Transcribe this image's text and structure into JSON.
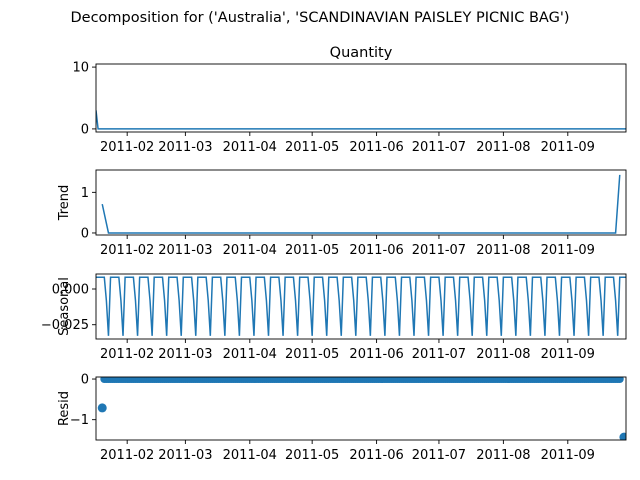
{
  "figure": {
    "suptitle": "Decomposition for ('Australia', 'SCANDINAVIAN PAISLEY PICNIC BAG')"
  },
  "colors": {
    "series": "#1f77b4",
    "axes": "#000000",
    "background": "#ffffff"
  },
  "chart_data": [
    {
      "type": "line",
      "panel": "observed",
      "title": "Quantity",
      "ylabel": "",
      "x_range": [
        "2011-01-17",
        "2011-09-29"
      ],
      "ylim": [
        -0.5,
        10.5
      ],
      "yticks": [
        {
          "v": 0,
          "label": "0"
        },
        {
          "v": 10,
          "label": "10"
        }
      ],
      "xticks": [
        "2011-02",
        "2011-03",
        "2011-04",
        "2011-05",
        "2011-06",
        "2011-07",
        "2011-08",
        "2011-09"
      ],
      "grid": false,
      "start": "2011-01-17",
      "values": [
        3,
        0,
        0,
        0,
        0,
        0,
        0,
        0,
        0,
        0,
        0,
        0,
        0,
        0,
        0,
        0,
        0,
        0,
        0,
        0,
        0,
        0,
        0,
        0,
        0,
        0,
        0,
        0,
        0,
        0,
        0,
        0,
        0,
        0,
        0,
        0,
        0,
        0,
        0,
        0,
        0,
        0,
        0,
        0,
        0,
        0,
        0,
        0,
        0,
        0,
        0,
        0,
        0,
        0,
        0,
        0,
        0,
        0,
        0,
        0,
        0,
        0,
        0,
        0,
        0,
        0,
        0,
        0,
        0,
        0,
        0,
        0,
        0,
        0,
        0,
        0,
        0,
        0,
        0,
        0,
        0,
        0,
        0,
        0,
        0,
        0,
        0,
        0,
        0,
        0,
        0,
        0,
        0,
        0,
        0,
        0,
        0,
        0,
        0,
        0,
        0,
        0,
        0,
        0,
        0,
        0,
        0,
        0,
        0,
        0,
        0,
        0,
        0,
        0,
        0,
        0,
        0,
        0,
        0,
        0,
        0,
        0,
        0,
        0,
        0,
        0,
        0,
        0,
        0,
        0,
        0,
        0,
        0,
        0,
        0,
        0,
        0,
        0,
        0,
        0,
        0,
        0,
        0,
        0,
        0,
        0,
        0,
        0,
        0,
        0,
        0,
        0,
        0,
        0,
        0,
        0,
        0,
        0,
        0,
        0,
        0,
        0,
        0,
        0,
        0,
        0,
        0,
        0,
        0,
        0,
        0,
        0,
        0,
        0,
        0,
        0,
        0,
        0,
        0,
        0,
        0,
        0,
        0,
        0,
        0,
        0,
        0,
        0,
        0,
        0,
        0,
        0,
        0,
        0,
        0,
        0,
        0,
        0,
        0,
        0,
        0,
        0,
        0,
        0,
        0,
        0,
        0,
        0,
        0,
        0,
        0,
        0,
        0,
        0,
        0,
        0,
        0,
        0,
        0,
        0,
        0,
        0,
        0,
        0,
        0,
        0,
        0,
        0,
        0,
        0,
        0,
        0,
        0,
        0,
        0,
        0,
        0,
        0,
        0,
        0,
        0,
        0,
        0,
        0,
        0,
        0,
        0,
        0,
        0,
        0,
        0,
        0,
        0,
        0,
        0,
        0,
        0,
        0,
        10
      ]
    },
    {
      "type": "line",
      "panel": "trend",
      "title": "",
      "ylabel": "Trend",
      "x_range": [
        "2011-01-17",
        "2011-09-29"
      ],
      "ylim": [
        -0.05,
        1.55
      ],
      "yticks": [
        {
          "v": 0,
          "label": "0"
        },
        {
          "v": 1,
          "label": "1"
        }
      ],
      "xticks": [
        "2011-02",
        "2011-03",
        "2011-04",
        "2011-05",
        "2011-06",
        "2011-07",
        "2011-08",
        "2011-09"
      ],
      "grid": false,
      "points": [
        [
          "2011-01-20",
          0.71
        ],
        [
          "2011-01-23",
          0.0
        ],
        [
          "2011-09-24",
          0.0
        ],
        [
          "2011-09-26",
          1.43
        ]
      ]
    },
    {
      "type": "line",
      "panel": "seasonal",
      "title": "",
      "ylabel": "Seasonal",
      "x_range": [
        "2011-01-17",
        "2011-09-29"
      ],
      "ylim": [
        -0.035,
        0.0105
      ],
      "yticks": [
        {
          "v": 0.0,
          "label": "0.000"
        },
        {
          "v": -0.025,
          "label": "−0.025"
        }
      ],
      "xticks": [
        "2011-02",
        "2011-03",
        "2011-04",
        "2011-05",
        "2011-06",
        "2011-07",
        "2011-08",
        "2011-09"
      ],
      "grid": false,
      "start": "2011-01-17",
      "period_pattern": [
        0.0082,
        0.0082,
        0.0082,
        0.0082,
        0.0082,
        -0.0082,
        -0.0328
      ]
    },
    {
      "type": "scatter",
      "panel": "resid",
      "title": "",
      "ylabel": "Resid",
      "x_range": [
        "2011-01-17",
        "2011-09-29"
      ],
      "ylim": [
        -1.5,
        0.05
      ],
      "yticks": [
        {
          "v": 0,
          "label": "0"
        },
        {
          "v": -1,
          "label": "−1"
        }
      ],
      "xticks": [
        "2011-02",
        "2011-03",
        "2011-04",
        "2011-05",
        "2011-06",
        "2011-07",
        "2011-08",
        "2011-09"
      ],
      "grid": false,
      "points": [
        [
          "2011-01-20",
          -0.71
        ],
        [
          "2011-09-28",
          -1.43
        ]
      ],
      "baseline": {
        "from": "2011-01-21",
        "to": "2011-09-26",
        "value": 0.0
      }
    }
  ]
}
